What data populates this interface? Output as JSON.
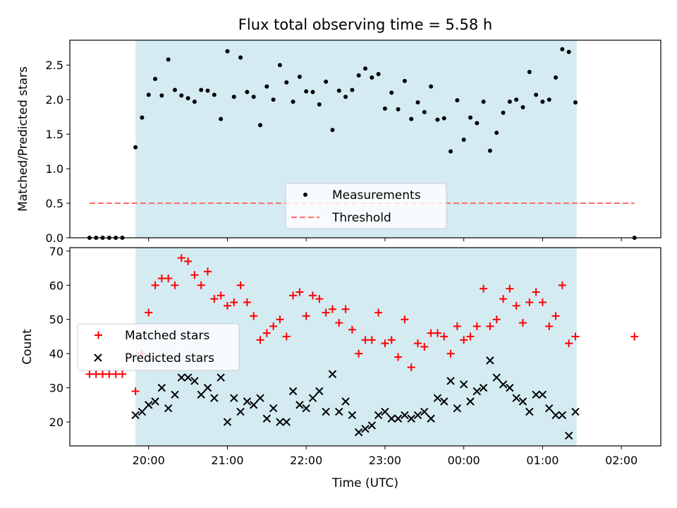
{
  "title": "Flux total observing time = 5.58 h",
  "colors": {
    "shade": "#add8e6",
    "measurement": "#000000",
    "threshold": "#ff6b6b",
    "matched": "#ff0000",
    "predicted": "#000000"
  },
  "x_axis": {
    "label": "Time (UTC)",
    "range": [
      "19:00",
      "02:30"
    ],
    "ticks": [
      "20:00",
      "21:00",
      "22:00",
      "23:00",
      "00:00",
      "01:00",
      "02:00"
    ]
  },
  "chart_data": [
    {
      "type": "scatter",
      "ylabel": "Matched/Predicted stars",
      "ylim": [
        0,
        2.86
      ],
      "yticks": [
        "0.0",
        "0.5",
        "1.0",
        "1.5",
        "2.0",
        "2.5"
      ],
      "shaded_interval": [
        "19:50",
        "01:26"
      ],
      "legend": {
        "position": "lower-center",
        "entries": [
          "Measurements",
          "Threshold"
        ]
      },
      "threshold": {
        "name": "Threshold",
        "y": 0.5,
        "x_range": [
          "19:15",
          "02:10"
        ]
      },
      "series": [
        {
          "name": "Measurements",
          "points": [
            [
              "19:15",
              0
            ],
            [
              "19:20",
              0
            ],
            [
              "19:25",
              0
            ],
            [
              "19:30",
              0
            ],
            [
              "19:35",
              0
            ],
            [
              "19:40",
              0
            ],
            [
              "19:50",
              1.31
            ],
            [
              "19:55",
              1.74
            ],
            [
              "20:00",
              2.07
            ],
            [
              "20:05",
              2.3
            ],
            [
              "20:10",
              2.06
            ],
            [
              "20:15",
              2.58
            ],
            [
              "20:20",
              2.14
            ],
            [
              "20:25",
              2.06
            ],
            [
              "20:30",
              2.02
            ],
            [
              "20:35",
              1.97
            ],
            [
              "20:40",
              2.14
            ],
            [
              "20:45",
              2.13
            ],
            [
              "20:50",
              2.07
            ],
            [
              "20:55",
              1.72
            ],
            [
              "21:00",
              2.7
            ],
            [
              "21:05",
              2.04
            ],
            [
              "21:10",
              2.61
            ],
            [
              "21:15",
              2.11
            ],
            [
              "21:20",
              2.04
            ],
            [
              "21:25",
              1.63
            ],
            [
              "21:30",
              2.19
            ],
            [
              "21:35",
              2.0
            ],
            [
              "21:40",
              2.5
            ],
            [
              "21:45",
              2.25
            ],
            [
              "21:50",
              1.97
            ],
            [
              "21:55",
              2.33
            ],
            [
              "22:00",
              2.12
            ],
            [
              "22:05",
              2.11
            ],
            [
              "22:10",
              1.93
            ],
            [
              "22:15",
              2.26
            ],
            [
              "22:20",
              1.56
            ],
            [
              "22:25",
              2.13
            ],
            [
              "22:30",
              2.04
            ],
            [
              "22:35",
              2.14
            ],
            [
              "22:40",
              2.35
            ],
            [
              "22:45",
              2.45
            ],
            [
              "22:50",
              2.32
            ],
            [
              "22:55",
              2.37
            ],
            [
              "23:00",
              1.87
            ],
            [
              "23:05",
              2.1
            ],
            [
              "23:10",
              1.86
            ],
            [
              "23:15",
              2.27
            ],
            [
              "23:20",
              1.72
            ],
            [
              "23:25",
              1.96
            ],
            [
              "23:30",
              1.82
            ],
            [
              "23:35",
              2.19
            ],
            [
              "23:40",
              1.71
            ],
            [
              "23:45",
              1.73
            ],
            [
              "23:50",
              1.25
            ],
            [
              "23:55",
              1.99
            ],
            [
              "00:00",
              1.42
            ],
            [
              "00:05",
              1.74
            ],
            [
              "00:10",
              1.66
            ],
            [
              "00:15",
              1.97
            ],
            [
              "00:20",
              1.26
            ],
            [
              "00:25",
              1.52
            ],
            [
              "00:30",
              1.81
            ],
            [
              "00:35",
              1.97
            ],
            [
              "00:40",
              2.0
            ],
            [
              "00:45",
              1.89
            ],
            [
              "00:50",
              2.4
            ],
            [
              "00:55",
              2.07
            ],
            [
              "01:00",
              1.97
            ],
            [
              "01:05",
              2.0
            ],
            [
              "01:10",
              2.32
            ],
            [
              "01:15",
              2.73
            ],
            [
              "01:20",
              2.69
            ],
            [
              "01:25",
              1.96
            ],
            [
              "02:10",
              0
            ]
          ]
        }
      ]
    },
    {
      "type": "scatter",
      "ylabel": "Count",
      "ylim": [
        13,
        71
      ],
      "yticks": [
        "20",
        "30",
        "40",
        "50",
        "60",
        "70"
      ],
      "shaded_interval": [
        "19:50",
        "01:26"
      ],
      "legend": {
        "position": "center-left",
        "entries": [
          "Matched stars",
          "Predicted stars"
        ]
      },
      "series": [
        {
          "name": "Matched stars",
          "marker": "+",
          "points": [
            [
              "19:15",
              34
            ],
            [
              "19:20",
              34
            ],
            [
              "19:25",
              34
            ],
            [
              "19:30",
              34
            ],
            [
              "19:35",
              34
            ],
            [
              "19:40",
              34
            ],
            [
              "19:50",
              29
            ],
            [
              "19:55",
              40
            ],
            [
              "20:00",
              52
            ],
            [
              "20:05",
              60
            ],
            [
              "20:10",
              62
            ],
            [
              "20:15",
              62
            ],
            [
              "20:20",
              60
            ],
            [
              "20:25",
              68
            ],
            [
              "20:30",
              67
            ],
            [
              "20:35",
              63
            ],
            [
              "20:40",
              60
            ],
            [
              "20:45",
              64
            ],
            [
              "20:50",
              56
            ],
            [
              "20:55",
              57
            ],
            [
              "21:00",
              54
            ],
            [
              "21:05",
              55
            ],
            [
              "21:10",
              60
            ],
            [
              "21:15",
              55
            ],
            [
              "21:20",
              51
            ],
            [
              "21:25",
              44
            ],
            [
              "21:30",
              46
            ],
            [
              "21:35",
              48
            ],
            [
              "21:40",
              50
            ],
            [
              "21:45",
              45
            ],
            [
              "21:50",
              57
            ],
            [
              "21:55",
              58
            ],
            [
              "22:00",
              51
            ],
            [
              "22:05",
              57
            ],
            [
              "22:10",
              56
            ],
            [
              "22:15",
              52
            ],
            [
              "22:20",
              53
            ],
            [
              "22:25",
              49
            ],
            [
              "22:30",
              53
            ],
            [
              "22:35",
              47
            ],
            [
              "22:40",
              40
            ],
            [
              "22:45",
              44
            ],
            [
              "22:50",
              44
            ],
            [
              "22:55",
              52
            ],
            [
              "23:00",
              43
            ],
            [
              "23:05",
              44
            ],
            [
              "23:10",
              39
            ],
            [
              "23:15",
              50
            ],
            [
              "23:20",
              36
            ],
            [
              "23:25",
              43
            ],
            [
              "23:30",
              42
            ],
            [
              "23:35",
              46
            ],
            [
              "23:40",
              46
            ],
            [
              "23:45",
              45
            ],
            [
              "23:50",
              40
            ],
            [
              "23:55",
              48
            ],
            [
              "00:00",
              44
            ],
            [
              "00:05",
              45
            ],
            [
              "00:10",
              48
            ],
            [
              "00:15",
              59
            ],
            [
              "00:20",
              48
            ],
            [
              "00:25",
              50
            ],
            [
              "00:30",
              56
            ],
            [
              "00:35",
              59
            ],
            [
              "00:40",
              54
            ],
            [
              "00:45",
              49
            ],
            [
              "00:50",
              55
            ],
            [
              "00:55",
              58
            ],
            [
              "01:00",
              55
            ],
            [
              "01:05",
              48
            ],
            [
              "01:10",
              51
            ],
            [
              "01:15",
              60
            ],
            [
              "01:20",
              43
            ],
            [
              "01:25",
              45
            ],
            [
              "02:10",
              45
            ]
          ]
        },
        {
          "name": "Predicted stars",
          "marker": "x",
          "points": [
            [
              "19:50",
              22
            ],
            [
              "19:55",
              23
            ],
            [
              "20:00",
              25
            ],
            [
              "20:05",
              26
            ],
            [
              "20:10",
              30
            ],
            [
              "20:15",
              24
            ],
            [
              "20:20",
              28
            ],
            [
              "20:25",
              33
            ],
            [
              "20:30",
              33
            ],
            [
              "20:35",
              32
            ],
            [
              "20:40",
              28
            ],
            [
              "20:45",
              30
            ],
            [
              "20:50",
              27
            ],
            [
              "20:55",
              33
            ],
            [
              "21:00",
              20
            ],
            [
              "21:05",
              27
            ],
            [
              "21:10",
              23
            ],
            [
              "21:15",
              26
            ],
            [
              "21:20",
              25
            ],
            [
              "21:25",
              27
            ],
            [
              "21:30",
              21
            ],
            [
              "21:35",
              24
            ],
            [
              "21:40",
              20
            ],
            [
              "21:45",
              20
            ],
            [
              "21:50",
              29
            ],
            [
              "21:55",
              25
            ],
            [
              "22:00",
              24
            ],
            [
              "22:05",
              27
            ],
            [
              "22:10",
              29
            ],
            [
              "22:15",
              23
            ],
            [
              "22:20",
              34
            ],
            [
              "22:25",
              23
            ],
            [
              "22:30",
              26
            ],
            [
              "22:35",
              22
            ],
            [
              "22:40",
              17
            ],
            [
              "22:45",
              18
            ],
            [
              "22:50",
              19
            ],
            [
              "22:55",
              22
            ],
            [
              "23:00",
              23
            ],
            [
              "23:05",
              21
            ],
            [
              "23:10",
              21
            ],
            [
              "23:15",
              22
            ],
            [
              "23:20",
              21
            ],
            [
              "23:25",
              22
            ],
            [
              "23:30",
              23
            ],
            [
              "23:35",
              21
            ],
            [
              "23:40",
              27
            ],
            [
              "23:45",
              26
            ],
            [
              "23:50",
              32
            ],
            [
              "23:55",
              24
            ],
            [
              "00:00",
              31
            ],
            [
              "00:05",
              26
            ],
            [
              "00:10",
              29
            ],
            [
              "00:15",
              30
            ],
            [
              "00:20",
              38
            ],
            [
              "00:25",
              33
            ],
            [
              "00:30",
              31
            ],
            [
              "00:35",
              30
            ],
            [
              "00:40",
              27
            ],
            [
              "00:45",
              26
            ],
            [
              "00:50",
              23
            ],
            [
              "00:55",
              28
            ],
            [
              "01:00",
              28
            ],
            [
              "01:05",
              24
            ],
            [
              "01:10",
              22
            ],
            [
              "01:15",
              22
            ],
            [
              "01:20",
              16
            ],
            [
              "01:25",
              23
            ]
          ]
        }
      ]
    }
  ]
}
